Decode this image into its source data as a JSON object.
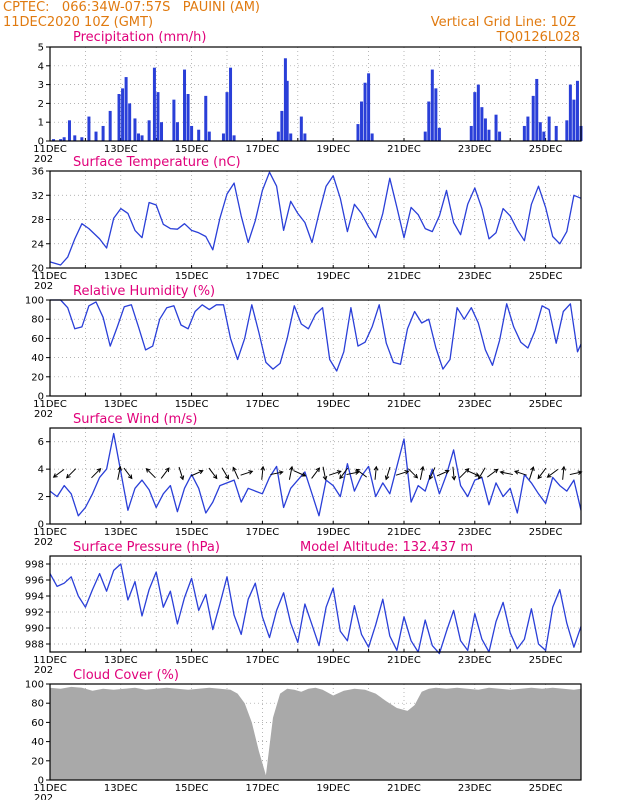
{
  "header": {
    "line1_left": "CPTEC:   066:34W-07:57S   PAUINI (AM)",
    "line2_left": "11DEC2020 10Z (GMT)",
    "line1_right": "Vertical Grid Line: 10Z",
    "line2_right": "TQ0126L028"
  },
  "colors": {
    "header": "#e07a10",
    "title": "#e0007a",
    "line": "#2a3fd8",
    "bar": "#2a3fd8",
    "cloud": "#a9a9a9",
    "grid": "#9a9a9a",
    "arrow": "#000000"
  },
  "x_labels": [
    "11DEC",
    "13DEC",
    "15DEC",
    "17DEC",
    "19DEC",
    "21DEC",
    "23DEC",
    "25DEC"
  ],
  "x_year_stub": "202",
  "chart_data": [
    {
      "type": "bar",
      "title": "Precipitation (mm/h)",
      "ylim": [
        0,
        5
      ],
      "yticks": [
        "0",
        "1",
        "2",
        "3",
        "4",
        "5"
      ],
      "x_day_range": [
        0,
        15
      ],
      "values": [
        [
          0.1,
          0.1
        ],
        [
          0.3,
          0.1
        ],
        [
          0.4,
          0.2
        ],
        [
          0.55,
          1.1
        ],
        [
          0.7,
          0.3
        ],
        [
          0.9,
          0.2
        ],
        [
          1.1,
          1.3
        ],
        [
          1.3,
          0.5
        ],
        [
          1.5,
          0.8
        ],
        [
          1.7,
          1.6
        ],
        [
          1.95,
          2.5
        ],
        [
          2.05,
          2.8
        ],
        [
          2.15,
          3.4
        ],
        [
          2.25,
          2.0
        ],
        [
          2.4,
          1.2
        ],
        [
          2.5,
          0.4
        ],
        [
          2.6,
          0.3
        ],
        [
          2.8,
          1.1
        ],
        [
          2.95,
          3.9
        ],
        [
          3.05,
          2.6
        ],
        [
          3.15,
          1.0
        ],
        [
          3.5,
          2.2
        ],
        [
          3.6,
          1.0
        ],
        [
          3.8,
          3.8
        ],
        [
          3.9,
          2.5
        ],
        [
          4.0,
          0.8
        ],
        [
          4.2,
          0.6
        ],
        [
          4.4,
          2.4
        ],
        [
          4.5,
          0.5
        ],
        [
          4.9,
          0.4
        ],
        [
          5.0,
          2.6
        ],
        [
          5.1,
          3.9
        ],
        [
          5.2,
          0.3
        ],
        [
          6.45,
          0.5
        ],
        [
          6.55,
          1.6
        ],
        [
          6.65,
          4.4
        ],
        [
          6.7,
          3.2
        ],
        [
          6.8,
          0.4
        ],
        [
          7.1,
          1.3
        ],
        [
          7.2,
          0.4
        ],
        [
          8.7,
          0.9
        ],
        [
          8.8,
          2.1
        ],
        [
          8.9,
          3.1
        ],
        [
          9.0,
          3.6
        ],
        [
          9.1,
          0.4
        ],
        [
          10.6,
          0.5
        ],
        [
          10.7,
          2.1
        ],
        [
          10.8,
          3.8
        ],
        [
          10.9,
          2.8
        ],
        [
          11.0,
          0.7
        ],
        [
          11.9,
          0.8
        ],
        [
          12.0,
          2.6
        ],
        [
          12.1,
          3.0
        ],
        [
          12.2,
          1.8
        ],
        [
          12.3,
          1.2
        ],
        [
          12.4,
          0.6
        ],
        [
          12.6,
          1.4
        ],
        [
          12.7,
          0.5
        ],
        [
          13.4,
          0.8
        ],
        [
          13.5,
          1.3
        ],
        [
          13.65,
          2.4
        ],
        [
          13.75,
          3.3
        ],
        [
          13.85,
          1.0
        ],
        [
          13.95,
          0.5
        ],
        [
          14.1,
          1.3
        ],
        [
          14.3,
          0.8
        ],
        [
          14.6,
          1.1
        ],
        [
          14.7,
          3.0
        ],
        [
          14.8,
          2.2
        ],
        [
          14.9,
          3.2
        ],
        [
          15.0,
          0.8
        ]
      ]
    },
    {
      "type": "line",
      "title": "Surface Temperature (nC)",
      "ylim": [
        20,
        36
      ],
      "yticks": [
        "20",
        "24",
        "28",
        "32",
        "36"
      ],
      "x": [
        0,
        0.3,
        0.5,
        0.7,
        0.9,
        1.1,
        1.4,
        1.6,
        1.8,
        2.0,
        2.2,
        2.4,
        2.6,
        2.8,
        3.0,
        3.2,
        3.4,
        3.6,
        3.8,
        4.0,
        4.2,
        4.4,
        4.6,
        4.8,
        5.0,
        5.2,
        5.4,
        5.6,
        5.8,
        6.0,
        6.2,
        6.4,
        6.6,
        6.8,
        7.0,
        7.2,
        7.4,
        7.6,
        7.8,
        8.0,
        8.2,
        8.4,
        8.6,
        8.8,
        9.0,
        9.2,
        9.4,
        9.6,
        9.8,
        10.0,
        10.2,
        10.4,
        10.6,
        10.8,
        11.0,
        11.2,
        11.4,
        11.6,
        11.8,
        12.0,
        12.2,
        12.4,
        12.6,
        12.8,
        13.0,
        13.2,
        13.4,
        13.6,
        13.8,
        14.0,
        14.2,
        14.4,
        14.6,
        14.8,
        15.0
      ],
      "y": [
        21,
        20.5,
        21.8,
        24.8,
        27.3,
        26.5,
        24.8,
        23.3,
        28.2,
        29.8,
        29.0,
        26.2,
        25.0,
        30.8,
        30.4,
        27.2,
        26.5,
        26.4,
        27.3,
        26.2,
        25.8,
        25.2,
        23.0,
        28.2,
        32.2,
        34.0,
        28.6,
        24.2,
        27.8,
        32.8,
        35.8,
        33.5,
        26.2,
        31.0,
        29.0,
        27.5,
        24.2,
        29.0,
        33.5,
        35.2,
        31.5,
        26.0,
        30.5,
        29.0,
        26.8,
        25.0,
        29.0,
        34.8,
        30.0,
        25.0,
        30.0,
        28.8,
        26.5,
        26.0,
        28.6,
        32.8,
        27.5,
        25.5,
        30.5,
        33.2,
        29.8,
        24.8,
        25.8,
        29.8,
        28.6,
        26.3,
        24.5,
        30.5,
        33.5,
        30.0,
        25.2,
        24.0,
        26.0,
        32.0,
        31.5
      ]
    },
    {
      "type": "line",
      "title": "Relative Humidity (%)",
      "ylim": [
        0,
        100
      ],
      "yticks": [
        "0",
        "20",
        "40",
        "60",
        "80",
        "100"
      ],
      "x": [
        0,
        0.3,
        0.5,
        0.7,
        0.9,
        1.1,
        1.3,
        1.5,
        1.7,
        1.9,
        2.1,
        2.3,
        2.5,
        2.7,
        2.9,
        3.1,
        3.3,
        3.5,
        3.7,
        3.9,
        4.1,
        4.3,
        4.5,
        4.7,
        4.9,
        5.1,
        5.3,
        5.5,
        5.7,
        5.9,
        6.1,
        6.3,
        6.5,
        6.7,
        6.9,
        7.1,
        7.3,
        7.5,
        7.7,
        7.9,
        8.1,
        8.3,
        8.5,
        8.7,
        8.9,
        9.1,
        9.3,
        9.5,
        9.7,
        9.9,
        10.1,
        10.3,
        10.5,
        10.7,
        10.9,
        11.1,
        11.3,
        11.5,
        11.7,
        11.9,
        12.1,
        12.3,
        12.5,
        12.7,
        12.9,
        13.1,
        13.3,
        13.5,
        13.7,
        13.9,
        14.1,
        14.3,
        14.5,
        14.7,
        14.9,
        15.0
      ],
      "y": [
        100,
        100,
        92,
        70,
        72,
        94,
        98,
        82,
        52,
        72,
        93,
        95,
        72,
        48,
        52,
        80,
        92,
        94,
        74,
        70,
        88,
        95,
        90,
        95,
        95,
        60,
        38,
        60,
        95,
        66,
        35,
        28,
        34,
        60,
        94,
        75,
        70,
        85,
        92,
        38,
        26,
        46,
        92,
        52,
        56,
        72,
        95,
        55,
        35,
        33,
        70,
        88,
        76,
        80,
        50,
        28,
        38,
        92,
        80,
        92,
        76,
        48,
        32,
        58,
        96,
        72,
        56,
        50,
        68,
        94,
        90,
        55,
        88,
        96,
        46,
        54
      ]
    },
    {
      "type": "line",
      "title": "Surface Wind (m/s)",
      "ylim": [
        0,
        7
      ],
      "yticks": [
        "0",
        "2",
        "4",
        "6"
      ],
      "x": [
        0,
        0.2,
        0.4,
        0.6,
        0.8,
        1.0,
        1.2,
        1.4,
        1.6,
        1.8,
        2.0,
        2.2,
        2.4,
        2.6,
        2.8,
        3.0,
        3.2,
        3.4,
        3.6,
        3.8,
        4.0,
        4.2,
        4.4,
        4.6,
        4.8,
        5.0,
        5.2,
        5.4,
        5.6,
        5.8,
        6.0,
        6.2,
        6.4,
        6.6,
        6.8,
        7.0,
        7.2,
        7.4,
        7.6,
        7.8,
        8.0,
        8.2,
        8.4,
        8.6,
        8.8,
        9.0,
        9.2,
        9.4,
        9.6,
        9.8,
        10.0,
        10.2,
        10.4,
        10.6,
        10.8,
        11.0,
        11.2,
        11.4,
        11.6,
        11.8,
        12.0,
        12.2,
        12.4,
        12.6,
        12.8,
        13.0,
        13.2,
        13.4,
        13.6,
        13.8,
        14.0,
        14.2,
        14.4,
        14.6,
        14.8,
        15.0
      ],
      "y": [
        2.4,
        2.0,
        2.8,
        2.2,
        0.6,
        1.2,
        2.2,
        3.4,
        4.0,
        6.6,
        3.8,
        1.0,
        2.6,
        3.2,
        2.5,
        1.2,
        2.2,
        2.8,
        0.9,
        2.6,
        3.6,
        2.6,
        0.8,
        1.6,
        2.8,
        3.0,
        3.2,
        1.6,
        2.6,
        2.4,
        2.2,
        3.4,
        4.2,
        1.2,
        2.6,
        3.2,
        3.8,
        2.2,
        0.6,
        3.2,
        2.8,
        2.0,
        4.4,
        2.4,
        3.5,
        4.2,
        2.0,
        3.0,
        2.2,
        4.2,
        6.2,
        1.6,
        2.8,
        2.4,
        4.0,
        2.2,
        3.6,
        5.4,
        2.8,
        2.0,
        3.2,
        3.4,
        1.4,
        3.0,
        2.0,
        2.6,
        0.8,
        3.6,
        3.0,
        2.2,
        1.5,
        3.4,
        2.8,
        2.4,
        3.2,
        1.0
      ],
      "vectors": [
        [
          0.25,
          -0.8,
          -0.6
        ],
        [
          0.6,
          -0.7,
          -0.7
        ],
        [
          1.3,
          0.7,
          0.7
        ],
        [
          1.95,
          0.2,
          1.0
        ],
        [
          2.2,
          0.6,
          -0.8
        ],
        [
          2.85,
          -0.7,
          0.7
        ],
        [
          3.25,
          0.6,
          0.8
        ],
        [
          3.7,
          0.3,
          -0.95
        ],
        [
          4.15,
          0.9,
          0.4
        ],
        [
          4.6,
          0.6,
          -0.8
        ],
        [
          4.95,
          0.5,
          -0.85
        ],
        [
          5.25,
          -0.4,
          0.9
        ],
        [
          5.55,
          0.9,
          0.3
        ],
        [
          6.0,
          0.1,
          1.0
        ],
        [
          6.4,
          0.95,
          0.2
        ],
        [
          6.8,
          0.2,
          1.0
        ],
        [
          7.05,
          0.9,
          -0.4
        ],
        [
          7.5,
          0.6,
          0.8
        ],
        [
          7.75,
          0.2,
          -1.0
        ],
        [
          8.05,
          0.9,
          0.3
        ],
        [
          8.3,
          -0.6,
          -0.8
        ],
        [
          8.55,
          0.95,
          0.2
        ],
        [
          8.8,
          -0.8,
          0.6
        ],
        [
          9.2,
          0.1,
          1.0
        ],
        [
          9.55,
          -0.3,
          -0.95
        ],
        [
          9.95,
          0.95,
          0.3
        ],
        [
          10.25,
          0.7,
          -0.7
        ],
        [
          10.5,
          0.2,
          1.0
        ],
        [
          10.8,
          -0.4,
          -0.9
        ],
        [
          11.1,
          0.9,
          0.4
        ],
        [
          11.4,
          0.1,
          -1.0
        ],
        [
          11.7,
          0.7,
          0.7
        ],
        [
          11.95,
          0.9,
          -0.4
        ],
        [
          12.2,
          -0.5,
          -0.85
        ],
        [
          12.5,
          0.8,
          0.6
        ],
        [
          12.9,
          -0.95,
          0.2
        ],
        [
          13.3,
          -0.9,
          0.3
        ],
        [
          13.6,
          0.3,
          0.95
        ],
        [
          13.9,
          -0.6,
          -0.8
        ],
        [
          14.2,
          -0.8,
          -0.6
        ],
        [
          14.5,
          0.1,
          1.0
        ],
        [
          14.85,
          0.9,
          0.2
        ]
      ]
    },
    {
      "type": "line",
      "title": "Surface Pressure (hPa)",
      "subtitle": "Model Altitude: 132.437  m",
      "ylim": [
        987,
        999
      ],
      "yticks": [
        "988",
        "990",
        "992",
        "994",
        "996",
        "998"
      ],
      "x": [
        0,
        0.2,
        0.4,
        0.6,
        0.8,
        1.0,
        1.2,
        1.4,
        1.6,
        1.8,
        2.0,
        2.2,
        2.4,
        2.6,
        2.8,
        3.0,
        3.2,
        3.4,
        3.6,
        3.8,
        4.0,
        4.2,
        4.4,
        4.6,
        4.8,
        5.0,
        5.2,
        5.4,
        5.6,
        5.8,
        6.0,
        6.2,
        6.4,
        6.6,
        6.8,
        7.0,
        7.2,
        7.4,
        7.6,
        7.8,
        8.0,
        8.2,
        8.4,
        8.6,
        8.8,
        9.0,
        9.2,
        9.4,
        9.6,
        9.8,
        10.0,
        10.2,
        10.4,
        10.6,
        10.8,
        11.0,
        11.2,
        11.4,
        11.6,
        11.8,
        12.0,
        12.2,
        12.4,
        12.6,
        12.8,
        13.0,
        13.2,
        13.4,
        13.6,
        13.8,
        14.0,
        14.2,
        14.4,
        14.6,
        14.8,
        15.0
      ],
      "y": [
        996.8,
        995.2,
        995.6,
        996.4,
        994.0,
        992.6,
        994.8,
        996.8,
        994.6,
        997.2,
        998.0,
        993.5,
        995.8,
        991.5,
        994.8,
        997.0,
        992.6,
        994.6,
        990.5,
        993.8,
        996.2,
        992.2,
        994.2,
        989.8,
        993.0,
        996.4,
        991.6,
        989.2,
        993.6,
        995.6,
        991.4,
        988.8,
        992.2,
        994.4,
        990.6,
        988.2,
        993.0,
        990.4,
        987.8,
        992.6,
        995.0,
        989.6,
        988.4,
        992.8,
        989.2,
        987.6,
        990.4,
        993.6,
        989.0,
        987.2,
        991.4,
        988.4,
        987.0,
        991.0,
        987.8,
        986.8,
        989.6,
        992.2,
        988.4,
        987.2,
        991.8,
        988.6,
        987.0,
        990.8,
        993.2,
        989.4,
        987.4,
        988.6,
        992.4,
        988.0,
        987.2,
        992.6,
        994.8,
        990.6,
        987.6,
        990.2
      ]
    },
    {
      "type": "area",
      "title": "Cloud Cover (%)",
      "ylim": [
        0,
        100
      ],
      "yticks": [
        "0",
        "20",
        "40",
        "60",
        "80",
        "100"
      ],
      "x": [
        0,
        0.3,
        0.6,
        0.9,
        1.2,
        1.5,
        1.8,
        2.1,
        2.4,
        2.7,
        3.0,
        3.3,
        3.6,
        3.9,
        4.2,
        4.5,
        4.8,
        5.1,
        5.3,
        5.5,
        5.7,
        5.9,
        6.1,
        6.3,
        6.5,
        6.7,
        6.9,
        7.1,
        7.3,
        7.5,
        7.7,
        8.0,
        8.3,
        8.6,
        8.9,
        9.2,
        9.5,
        9.8,
        10.1,
        10.3,
        10.5,
        10.7,
        10.9,
        11.2,
        11.5,
        11.8,
        12.1,
        12.4,
        12.7,
        13.0,
        13.3,
        13.6,
        13.9,
        14.2,
        14.5,
        14.8,
        15.0
      ],
      "y": [
        96,
        95,
        97,
        96,
        93,
        95,
        94,
        95,
        96,
        94,
        95,
        96,
        95,
        94,
        95,
        96,
        95,
        94,
        90,
        80,
        60,
        30,
        5,
        65,
        90,
        95,
        94,
        92,
        95,
        96,
        94,
        88,
        93,
        95,
        94,
        90,
        82,
        75,
        72,
        78,
        92,
        95,
        96,
        95,
        96,
        95,
        94,
        96,
        95,
        94,
        95,
        96,
        95,
        96,
        95,
        94,
        95
      ]
    }
  ]
}
